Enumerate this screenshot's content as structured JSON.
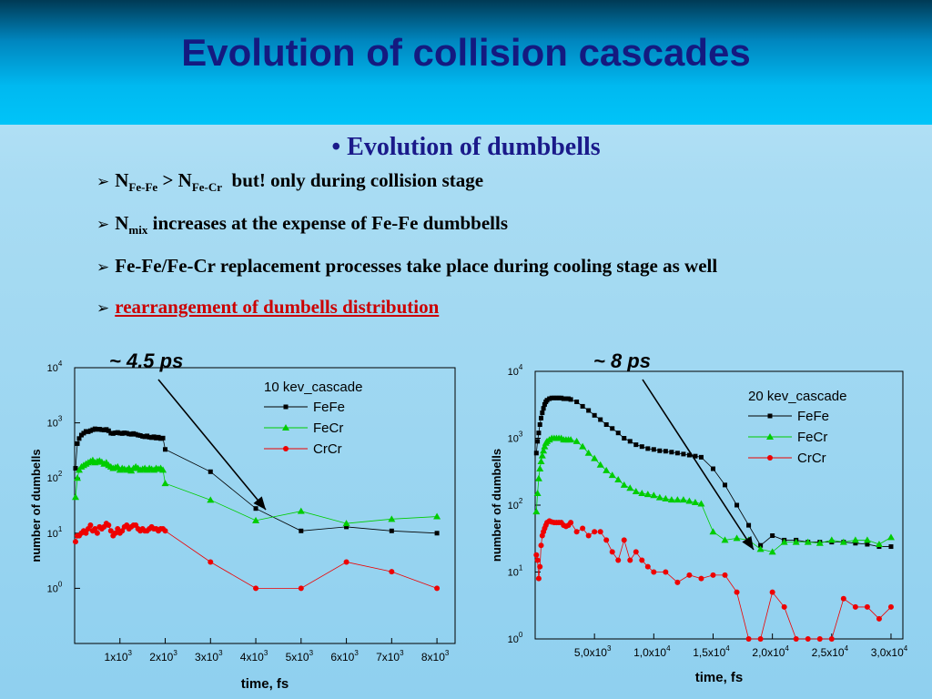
{
  "slide": {
    "title": "Evolution of collision cascades",
    "subtitle_bullet": "•",
    "subtitle": "Evolution of dumbbells",
    "bullets": [
      {
        "n_fefe": "N",
        "sub_fefe": "Fe-Fe",
        "gt": " > ",
        "n_fecr": "N",
        "sub_fecr": "Fe-Cr",
        "rest": "  but! only during collision stage"
      },
      {
        "n": "N",
        "sub": "mix",
        "rest": " increases at the expense of Fe-Fe dumbbells"
      },
      {
        "text": "Fe-Fe/Fe-Cr replacement processes take place during cooling stage as well"
      },
      {
        "text": "rearrangement of dumbells distribution"
      }
    ],
    "arrow_glyph": "➢"
  },
  "chart_data": [
    {
      "type": "scatter",
      "annotation": "~ 4.5 ps",
      "legend_title": "10 kev_cascade",
      "xlabel": "time, fs",
      "ylabel": "number of dumbells",
      "xlim": [
        0,
        8400
      ],
      "ylim": [
        0.1,
        10000
      ],
      "yscale": "log",
      "grid": false,
      "legend_position": "top-right",
      "xticks": [
        {
          "v": 1000,
          "b": "1x10",
          "e": "3"
        },
        {
          "v": 2000,
          "b": "2x10",
          "e": "3"
        },
        {
          "v": 3000,
          "b": "3x10",
          "e": "3"
        },
        {
          "v": 4000,
          "b": "4x10",
          "e": "3"
        },
        {
          "v": 5000,
          "b": "5x10",
          "e": "3"
        },
        {
          "v": 6000,
          "b": "6x10",
          "e": "3"
        },
        {
          "v": 7000,
          "b": "7x10",
          "e": "3"
        },
        {
          "v": 8000,
          "b": "8x10",
          "e": "3"
        }
      ],
      "yticks": [
        {
          "v": 1,
          "b": "10",
          "e": "0"
        },
        {
          "v": 10,
          "b": "10",
          "e": "1"
        },
        {
          "v": 100,
          "b": "10",
          "e": "2"
        },
        {
          "v": 1000,
          "b": "10",
          "e": "3"
        },
        {
          "v": 10000,
          "b": "10",
          "e": "4"
        }
      ],
      "series": [
        {
          "name": "FeFe",
          "color": "#000000",
          "marker": "square",
          "x": [
            20,
            60,
            100,
            150,
            200,
            250,
            300,
            350,
            400,
            450,
            500,
            550,
            600,
            650,
            700,
            750,
            800,
            850,
            900,
            950,
            1000,
            1050,
            1100,
            1150,
            1200,
            1250,
            1300,
            1350,
            1400,
            1450,
            1500,
            1550,
            1600,
            1650,
            1700,
            1750,
            1800,
            1850,
            1900,
            1950,
            2000,
            3000,
            4000,
            5000,
            6000,
            7000,
            8000
          ],
          "y": [
            150,
            420,
            520,
            600,
            650,
            700,
            690,
            720,
            750,
            780,
            760,
            770,
            750,
            740,
            760,
            720,
            650,
            640,
            660,
            670,
            650,
            640,
            660,
            650,
            630,
            620,
            640,
            620,
            600,
            590,
            570,
            560,
            580,
            550,
            540,
            560,
            530,
            550,
            520,
            530,
            330,
            130,
            28,
            11,
            13,
            11,
            10
          ]
        },
        {
          "name": "FeCr",
          "color": "#00cc00",
          "marker": "triangle",
          "x": [
            20,
            60,
            100,
            150,
            200,
            250,
            300,
            350,
            400,
            450,
            500,
            550,
            600,
            650,
            700,
            750,
            800,
            850,
            900,
            950,
            1000,
            1050,
            1100,
            1150,
            1200,
            1250,
            1300,
            1350,
            1400,
            1450,
            1500,
            1550,
            1600,
            1650,
            1700,
            1750,
            1800,
            1850,
            1900,
            1950,
            2000,
            3000,
            4000,
            5000,
            6000,
            7000,
            8000
          ],
          "y": [
            45,
            100,
            140,
            160,
            170,
            180,
            190,
            200,
            210,
            190,
            200,
            205,
            195,
            180,
            190,
            170,
            160,
            150,
            155,
            160,
            140,
            150,
            145,
            140,
            150,
            135,
            150,
            160,
            150,
            140,
            145,
            150,
            140,
            150,
            145,
            140,
            150,
            145,
            150,
            140,
            80,
            40,
            17,
            25,
            15,
            18,
            20
          ]
        },
        {
          "name": "CrCr",
          "color": "#ee0000",
          "marker": "circle",
          "x": [
            20,
            60,
            100,
            150,
            200,
            250,
            300,
            350,
            400,
            450,
            500,
            550,
            600,
            650,
            700,
            750,
            800,
            850,
            900,
            950,
            1000,
            1050,
            1100,
            1150,
            1200,
            1250,
            1300,
            1350,
            1400,
            1450,
            1500,
            1550,
            1600,
            1650,
            1700,
            1750,
            1800,
            1850,
            1900,
            1950,
            2000,
            3000,
            4000,
            5000,
            6000,
            7000,
            8000
          ],
          "y": [
            7,
            9,
            9,
            10,
            11,
            10,
            12,
            14,
            11,
            12,
            10,
            13,
            12,
            13,
            15,
            14,
            11,
            9,
            10,
            12,
            10,
            11,
            13,
            14,
            12,
            13,
            14,
            14,
            12,
            11,
            12,
            11,
            11,
            12,
            13,
            12,
            12,
            11,
            12,
            12,
            11,
            3,
            1,
            1,
            3,
            2,
            1
          ]
        }
      ]
    },
    {
      "type": "scatter",
      "annotation": "~ 8 ps",
      "legend_title": "20 kev_cascade",
      "xlabel": "time, fs",
      "ylabel": "number of dumbells",
      "xlim": [
        0,
        31000
      ],
      "ylim": [
        1,
        10000
      ],
      "yscale": "log",
      "grid": false,
      "legend_position": "top-right",
      "xticks": [
        {
          "v": 5000,
          "b": "5,0x10",
          "e": "3"
        },
        {
          "v": 10000,
          "b": "1,0x10",
          "e": "4"
        },
        {
          "v": 15000,
          "b": "1,5x10",
          "e": "4"
        },
        {
          "v": 20000,
          "b": "2,0x10",
          "e": "4"
        },
        {
          "v": 25000,
          "b": "2,5x10",
          "e": "4"
        },
        {
          "v": 30000,
          "b": "3,0x10",
          "e": "4"
        }
      ],
      "yticks": [
        {
          "v": 1,
          "b": "10",
          "e": "0"
        },
        {
          "v": 10,
          "b": "10",
          "e": "1"
        },
        {
          "v": 100,
          "b": "10",
          "e": "2"
        },
        {
          "v": 1000,
          "b": "10",
          "e": "3"
        },
        {
          "v": 10000,
          "b": "10",
          "e": "4"
        }
      ],
      "series": [
        {
          "name": "FeFe",
          "color": "#000000",
          "marker": "square",
          "x": [
            100,
            200,
            300,
            400,
            500,
            600,
            700,
            800,
            900,
            1000,
            1200,
            1400,
            1600,
            1800,
            2000,
            2200,
            2400,
            2600,
            2800,
            3000,
            3500,
            4000,
            4500,
            5000,
            5500,
            6000,
            6500,
            7000,
            7500,
            8000,
            8500,
            9000,
            9500,
            10000,
            10500,
            11000,
            11500,
            12000,
            12500,
            13000,
            13500,
            14000,
            15000,
            16000,
            17000,
            18000,
            19000,
            20000,
            21000,
            22000,
            23000,
            24000,
            25000,
            26000,
            27000,
            28000,
            29000,
            30000
          ],
          "y": [
            600,
            900,
            1200,
            1600,
            2000,
            2400,
            2800,
            3200,
            3500,
            3700,
            3900,
            4000,
            4000,
            4000,
            4000,
            4000,
            3900,
            3900,
            3900,
            3800,
            3500,
            3000,
            2600,
            2200,
            1900,
            1600,
            1400,
            1200,
            1000,
            900,
            800,
            750,
            700,
            680,
            650,
            640,
            620,
            600,
            580,
            560,
            540,
            520,
            350,
            200,
            100,
            50,
            25,
            35,
            30,
            30,
            28,
            28,
            28,
            28,
            27,
            26,
            24,
            24
          ]
        },
        {
          "name": "FeCr",
          "color": "#00cc00",
          "marker": "triangle",
          "x": [
            100,
            200,
            300,
            400,
            500,
            600,
            700,
            800,
            900,
            1000,
            1200,
            1400,
            1600,
            1800,
            2000,
            2200,
            2400,
            2600,
            2800,
            3000,
            3500,
            4000,
            4500,
            5000,
            5500,
            6000,
            6500,
            7000,
            7500,
            8000,
            8500,
            9000,
            9500,
            10000,
            10500,
            11000,
            11500,
            12000,
            12500,
            13000,
            13500,
            14000,
            15000,
            16000,
            17000,
            18000,
            19000,
            20000,
            21000,
            22000,
            23000,
            24000,
            25000,
            26000,
            27000,
            28000,
            29000,
            30000
          ],
          "y": [
            80,
            150,
            250,
            350,
            450,
            550,
            650,
            750,
            850,
            900,
            950,
            1000,
            1000,
            1000,
            1000,
            1000,
            950,
            950,
            950,
            950,
            900,
            750,
            600,
            500,
            400,
            330,
            280,
            240,
            200,
            180,
            160,
            150,
            145,
            140,
            130,
            125,
            120,
            120,
            120,
            115,
            110,
            105,
            40,
            30,
            32,
            30,
            22,
            20,
            28,
            28,
            28,
            27,
            30,
            28,
            30,
            30,
            26,
            33
          ]
        },
        {
          "name": "CrCr",
          "color": "#ee0000",
          "marker": "circle",
          "x": [
            100,
            200,
            300,
            400,
            500,
            600,
            700,
            800,
            900,
            1000,
            1200,
            1400,
            1600,
            1800,
            2000,
            2200,
            2400,
            2600,
            2800,
            3000,
            3500,
            4000,
            4500,
            5000,
            5500,
            6000,
            6500,
            7000,
            7500,
            8000,
            8500,
            9000,
            9500,
            10000,
            11000,
            12000,
            13000,
            14000,
            15000,
            16000,
            17000,
            18000,
            19000,
            20000,
            21000,
            22000,
            23000,
            24000,
            25000,
            26000,
            27000,
            28000,
            29000,
            30000
          ],
          "y": [
            18,
            15,
            8,
            12,
            25,
            35,
            40,
            45,
            50,
            55,
            58,
            56,
            55,
            55,
            55,
            55,
            50,
            48,
            50,
            55,
            40,
            45,
            35,
            40,
            40,
            30,
            20,
            15,
            30,
            15,
            20,
            15,
            12,
            10,
            10,
            7,
            9,
            8,
            9,
            9,
            5,
            1,
            1,
            5,
            3,
            1,
            1,
            1,
            1,
            4,
            3,
            3,
            2,
            3
          ]
        }
      ]
    }
  ]
}
